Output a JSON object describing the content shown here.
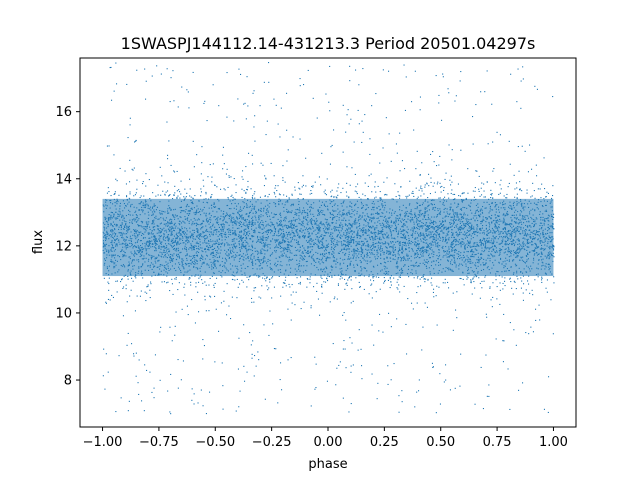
{
  "chart_data": {
    "type": "scatter",
    "title": "1SWASPJ144112.14-431213.3 Period 20501.04297s",
    "xlabel": "phase",
    "ylabel": "flux",
    "xlim": [
      -1.1,
      1.1
    ],
    "ylim": [
      6.6,
      17.6
    ],
    "x_ticks": [
      -1.0,
      -0.75,
      -0.5,
      -0.25,
      0.0,
      0.25,
      0.5,
      0.75,
      1.0
    ],
    "x_tick_labels": [
      "−1.00",
      "−0.75",
      "−0.50",
      "−0.25",
      "0.00",
      "0.25",
      "0.50",
      "0.75",
      "1.00"
    ],
    "y_ticks": [
      8,
      10,
      12,
      14,
      16
    ],
    "y_tick_labels": [
      "8",
      "10",
      "12",
      "14",
      "16"
    ],
    "grid": false,
    "legend": "none",
    "marker_color": "#1f77b4",
    "series": [
      {
        "x_range": [
          -1.0,
          1.0
        ],
        "y_center": 12.3,
        "y_core_range": [
          10.5,
          14.0
        ],
        "y_full_range": [
          7.0,
          17.5
        ]
      }
    ]
  }
}
